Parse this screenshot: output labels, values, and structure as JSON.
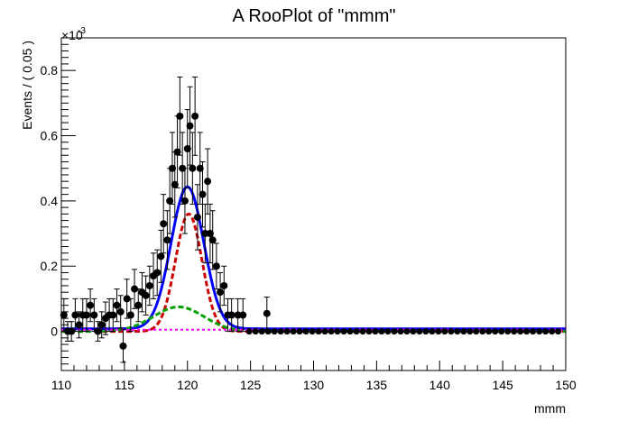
{
  "chart_data": {
    "type": "scatter",
    "title": "A RooPlot of \"mmm\"",
    "xlabel": "mmm",
    "ylabel": "Events / ( 0.05 )",
    "y_exponent_label": "×10",
    "y_exponent_power": "-3",
    "xlim": [
      110,
      150
    ],
    "ylim": [
      -0.12,
      0.9
    ],
    "grid": false,
    "x_ticks": [
      "110",
      "115",
      "120",
      "125",
      "130",
      "135",
      "140",
      "145",
      "150"
    ],
    "y_ticks": [
      "0",
      "0.2",
      "0.4",
      "0.6",
      "0.8"
    ],
    "x_tick_values": [
      110,
      115,
      120,
      125,
      130,
      135,
      140,
      145,
      150
    ],
    "y_tick_values": [
      0,
      0.2,
      0.4,
      0.6,
      0.8
    ],
    "data_points": [
      {
        "x": 110.2,
        "y": 0.05,
        "err": 0.05
      },
      {
        "x": 110.5,
        "y": 0.0,
        "err": 0.03
      },
      {
        "x": 110.8,
        "y": 0.0,
        "err": 0.03
      },
      {
        "x": 111.1,
        "y": 0.05,
        "err": 0.05
      },
      {
        "x": 111.4,
        "y": 0.02,
        "err": 0.04
      },
      {
        "x": 111.7,
        "y": 0.05,
        "err": 0.05
      },
      {
        "x": 112.0,
        "y": 0.05,
        "err": 0.05
      },
      {
        "x": 112.3,
        "y": 0.08,
        "err": 0.05
      },
      {
        "x": 112.6,
        "y": 0.05,
        "err": 0.05
      },
      {
        "x": 112.9,
        "y": 0.0,
        "err": 0.03
      },
      {
        "x": 113.2,
        "y": 0.02,
        "err": 0.04
      },
      {
        "x": 113.5,
        "y": 0.04,
        "err": 0.05
      },
      {
        "x": 113.8,
        "y": 0.05,
        "err": 0.05
      },
      {
        "x": 114.1,
        "y": 0.05,
        "err": 0.05
      },
      {
        "x": 114.4,
        "y": 0.08,
        "err": 0.05
      },
      {
        "x": 114.7,
        "y": 0.06,
        "err": 0.05
      },
      {
        "x": 114.9,
        "y": -0.045,
        "err": 0.05
      },
      {
        "x": 115.2,
        "y": 0.1,
        "err": 0.06
      },
      {
        "x": 115.5,
        "y": 0.05,
        "err": 0.05
      },
      {
        "x": 115.8,
        "y": 0.13,
        "err": 0.06
      },
      {
        "x": 116.1,
        "y": 0.08,
        "err": 0.05
      },
      {
        "x": 116.4,
        "y": 0.12,
        "err": 0.06
      },
      {
        "x": 116.7,
        "y": 0.11,
        "err": 0.06
      },
      {
        "x": 117.0,
        "y": 0.14,
        "err": 0.06
      },
      {
        "x": 117.3,
        "y": 0.17,
        "err": 0.07
      },
      {
        "x": 117.6,
        "y": 0.18,
        "err": 0.07
      },
      {
        "x": 117.9,
        "y": 0.23,
        "err": 0.08
      },
      {
        "x": 118.1,
        "y": 0.33,
        "err": 0.09
      },
      {
        "x": 118.4,
        "y": 0.28,
        "err": 0.09
      },
      {
        "x": 118.6,
        "y": 0.4,
        "err": 0.1
      },
      {
        "x": 118.8,
        "y": 0.5,
        "err": 0.11
      },
      {
        "x": 119.0,
        "y": 0.45,
        "err": 0.1
      },
      {
        "x": 119.2,
        "y": 0.55,
        "err": 0.11
      },
      {
        "x": 119.4,
        "y": 0.66,
        "err": 0.12
      },
      {
        "x": 119.6,
        "y": 0.5,
        "err": 0.11
      },
      {
        "x": 119.8,
        "y": 0.4,
        "err": 0.1
      },
      {
        "x": 120.0,
        "y": 0.56,
        "err": 0.12
      },
      {
        "x": 120.2,
        "y": 0.63,
        "err": 0.12
      },
      {
        "x": 120.4,
        "y": 0.5,
        "err": 0.11
      },
      {
        "x": 120.6,
        "y": 0.66,
        "err": 0.12
      },
      {
        "x": 120.8,
        "y": 0.35,
        "err": 0.1
      },
      {
        "x": 121.0,
        "y": 0.5,
        "err": 0.11
      },
      {
        "x": 121.2,
        "y": 0.42,
        "err": 0.1
      },
      {
        "x": 121.4,
        "y": 0.3,
        "err": 0.09
      },
      {
        "x": 121.6,
        "y": 0.46,
        "err": 0.1
      },
      {
        "x": 121.8,
        "y": 0.3,
        "err": 0.09
      },
      {
        "x": 122.0,
        "y": 0.28,
        "err": 0.09
      },
      {
        "x": 122.3,
        "y": 0.2,
        "err": 0.07
      },
      {
        "x": 122.6,
        "y": 0.12,
        "err": 0.06
      },
      {
        "x": 122.9,
        "y": 0.14,
        "err": 0.06
      },
      {
        "x": 123.2,
        "y": 0.05,
        "err": 0.05
      },
      {
        "x": 123.5,
        "y": 0.05,
        "err": 0.05
      },
      {
        "x": 124.0,
        "y": 0.05,
        "err": 0.05
      },
      {
        "x": 124.4,
        "y": 0.05,
        "err": 0.05
      },
      {
        "x": 126.3,
        "y": 0.055,
        "err": 0.05
      }
    ],
    "series": [
      {
        "name": "",
        "color": "#0000ff",
        "kind": "gaussian",
        "amp": 0.435,
        "mu": 120.0,
        "sigma": 1.3,
        "base": 0.008,
        "width": 3,
        "dash": ""
      },
      {
        "name": "",
        "color": "#cc0000",
        "kind": "gaussian",
        "amp": 0.36,
        "mu": 120.1,
        "sigma": 1.05,
        "base": 0.0,
        "width": 3,
        "dash": "6,3"
      },
      {
        "name": "",
        "color": "#00a000",
        "kind": "gaussian",
        "amp": 0.075,
        "mu": 119.3,
        "sigma": 2.0,
        "base": 0.0,
        "width": 3,
        "dash": "6,3"
      },
      {
        "name": "",
        "color": "#ff00ff",
        "kind": "flat",
        "amp": 0.0,
        "mu": 0,
        "sigma": 1,
        "base": 0.005,
        "width": 2,
        "dash": "3,3"
      }
    ]
  }
}
